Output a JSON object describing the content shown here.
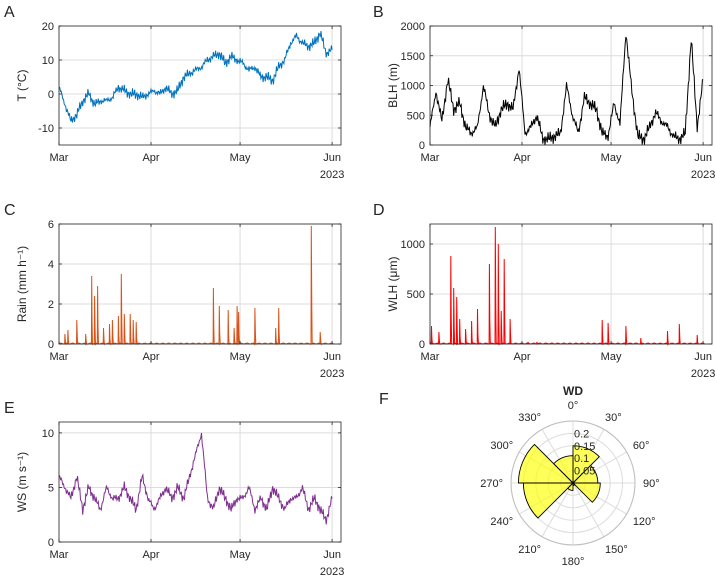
{
  "chart_data": [
    {
      "panel": "A",
      "type": "line",
      "ylabel": "T (°C)",
      "ylim": [
        -15,
        20
      ],
      "yticks": [
        -10,
        0,
        10,
        20
      ],
      "xticks": [
        "Mar",
        "Apr",
        "May",
        "Jun"
      ],
      "x_year_label": "2023",
      "xlim_days": [
        0,
        95
      ],
      "grid": true,
      "color": "#0072BD",
      "series": [
        {
          "x": [
            0,
            2,
            4,
            6,
            8,
            10,
            12,
            14,
            16,
            18,
            20,
            22,
            24,
            26,
            28,
            30,
            32,
            34,
            36,
            38,
            40,
            42,
            44,
            46,
            48,
            50,
            52,
            54,
            56,
            58,
            60,
            62,
            64,
            66,
            68,
            70,
            72,
            74,
            76,
            78,
            80,
            82,
            84,
            86,
            88,
            90,
            92
          ],
          "values": [
            2,
            -3,
            -8,
            -6,
            -2,
            0,
            -3,
            -2,
            -2,
            -1,
            2,
            1,
            0,
            0,
            -1,
            0,
            1,
            0,
            2,
            0,
            1,
            5,
            6,
            7,
            8,
            10,
            11,
            12,
            9,
            11,
            10,
            9,
            7,
            8,
            5,
            5,
            4,
            8,
            10,
            15,
            17,
            15,
            14,
            15,
            18,
            12,
            13
          ]
        }
      ]
    },
    {
      "panel": "B",
      "type": "line",
      "ylabel": "BLH (m)",
      "ylim": [
        0,
        2000
      ],
      "yticks": [
        0,
        500,
        1000,
        1500,
        2000
      ],
      "xticks": [
        "Mar",
        "Apr",
        "May",
        "Jun"
      ],
      "x_year_label": "2023",
      "xlim_days": [
        0,
        95
      ],
      "grid": true,
      "color": "#000000",
      "series": [
        {
          "x": [
            0,
            2,
            4,
            6,
            8,
            10,
            12,
            14,
            16,
            18,
            20,
            22,
            24,
            26,
            28,
            30,
            32,
            34,
            36,
            38,
            40,
            42,
            44,
            46,
            48,
            50,
            52,
            54,
            56,
            58,
            60,
            62,
            64,
            66,
            68,
            70,
            72,
            74,
            76,
            78,
            80,
            82,
            84,
            86,
            88,
            90,
            92
          ],
          "values": [
            300,
            900,
            400,
            1100,
            600,
            700,
            300,
            200,
            300,
            1000,
            500,
            300,
            600,
            700,
            600,
            1300,
            200,
            300,
            500,
            100,
            100,
            150,
            200,
            1000,
            500,
            200,
            800,
            700,
            600,
            200,
            150,
            700,
            350,
            1900,
            900,
            150,
            100,
            300,
            550,
            400,
            300,
            150,
            100,
            200,
            1800,
            300,
            1100
          ]
        }
      ]
    },
    {
      "panel": "C",
      "type": "line",
      "ylabel": "Rain (mm h⁻¹)",
      "ylim": [
        0,
        6
      ],
      "yticks": [
        0,
        2,
        4,
        6
      ],
      "xticks": [
        "Mar",
        "Apr",
        "May",
        "Jun"
      ],
      "x_year_label": "2023",
      "xlim_days": [
        0,
        95
      ],
      "grid": true,
      "color": "#D95319",
      "series": [
        {
          "peaks_x": [
            2,
            3,
            6,
            9,
            11,
            12,
            13,
            15,
            17,
            18,
            20,
            21,
            22,
            24,
            25,
            26,
            52,
            54,
            57,
            59,
            60,
            60.5,
            66,
            73,
            74,
            85,
            88
          ],
          "peaks_values": [
            0.5,
            0.7,
            1.2,
            0.5,
            3.4,
            2.4,
            2.9,
            0.8,
            1.0,
            1.2,
            1.4,
            3.5,
            1.5,
            1.5,
            1.2,
            1.1,
            2.8,
            1.9,
            1.7,
            0.8,
            1.9,
            1.6,
            1.8,
            0.8,
            1.8,
            5.9,
            0.6
          ]
        }
      ]
    },
    {
      "panel": "D",
      "type": "line",
      "ylabel": "WLH (μm)",
      "ylim": [
        0,
        1200
      ],
      "yticks": [
        0,
        500,
        1000
      ],
      "xticks": [
        "Mar",
        "Apr",
        "May",
        "Jun"
      ],
      "x_year_label": "2023",
      "xlim_days": [
        0,
        95
      ],
      "grid": true,
      "color": "#FF0000",
      "series": [
        {
          "peaks_x": [
            0.5,
            3,
            7,
            8,
            9,
            10,
            12,
            14,
            16,
            20,
            22,
            23,
            24,
            25,
            27,
            33,
            36,
            58,
            60,
            66,
            71,
            80,
            84,
            90,
            94
          ],
          "peaks_values": [
            180,
            120,
            880,
            560,
            470,
            250,
            150,
            230,
            350,
            800,
            1170,
            1000,
            330,
            850,
            250,
            20,
            20,
            240,
            210,
            180,
            60,
            130,
            200,
            90,
            40
          ]
        }
      ]
    },
    {
      "panel": "E",
      "type": "line",
      "ylabel": "WS (m s⁻¹)",
      "ylim": [
        0,
        11
      ],
      "yticks": [
        0,
        5,
        10
      ],
      "xticks": [
        "Mar",
        "Apr",
        "May",
        "Jun"
      ],
      "x_year_label": "2023",
      "xlim_days": [
        0,
        95
      ],
      "grid": true,
      "color": "#7E2F8E",
      "series": [
        {
          "x": [
            0,
            2,
            4,
            6,
            8,
            10,
            12,
            14,
            16,
            18,
            20,
            22,
            24,
            26,
            28,
            30,
            32,
            34,
            36,
            38,
            40,
            42,
            44,
            46,
            48,
            50,
            52,
            54,
            56,
            58,
            60,
            62,
            64,
            66,
            68,
            70,
            72,
            74,
            76,
            78,
            80,
            82,
            84,
            86,
            88,
            90,
            92
          ],
          "values": [
            6,
            5,
            4,
            6,
            3,
            5,
            4,
            3,
            5,
            4,
            4,
            5,
            4,
            3,
            6,
            4,
            3,
            4,
            5,
            4,
            5,
            4,
            6,
            8,
            10,
            4,
            3,
            5,
            4,
            3,
            4,
            4,
            5,
            3,
            4,
            3,
            5,
            4,
            3,
            4,
            4,
            5,
            3,
            4,
            3,
            2,
            4
          ]
        }
      ]
    },
    {
      "panel": "F",
      "type": "polar-histogram",
      "title": "WD",
      "theta_ticks": [
        "0°",
        "30°",
        "60°",
        "90°",
        "120°",
        "150°",
        "180°",
        "210°",
        "240°",
        "270°",
        "300°",
        "330°"
      ],
      "r_ticks": [
        "0.05",
        "0.1",
        "0.15",
        "0.2"
      ],
      "rlim": [
        0,
        0.25
      ],
      "color": "#FFFF00",
      "bins_deg": [
        [
          0,
          45
        ],
        [
          45,
          90
        ],
        [
          90,
          135
        ],
        [
          135,
          180
        ],
        [
          180,
          225
        ],
        [
          225,
          270
        ],
        [
          270,
          315
        ],
        [
          315,
          360
        ]
      ],
      "values": [
        0.15,
        0.1,
        0.11,
        0.01,
        0.03,
        0.2,
        0.22,
        0.11
      ]
    }
  ]
}
